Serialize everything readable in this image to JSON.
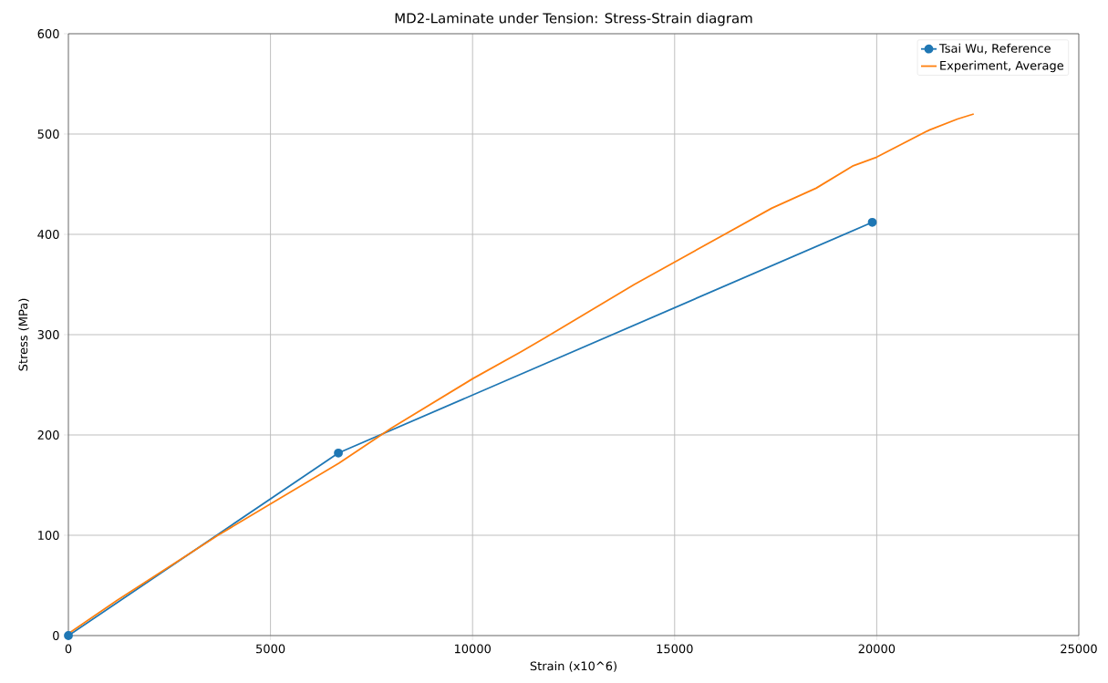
{
  "chart_data": {
    "type": "line",
    "title": "MD2-Laminate under Tension: Stress-Strain diagram",
    "xlabel": "Strain (x10^6)",
    "ylabel": "Stress (MPa)",
    "series": [
      {
        "name": "Tsai Wu, Reference",
        "color": "#1f77b4",
        "marker": "circle",
        "x": [
          0,
          6680,
          19890
        ],
        "values": [
          0,
          182,
          412
        ]
      },
      {
        "name": "Experiment, Average",
        "color": "#ff7f0e",
        "marker": "none",
        "x": [
          0,
          1200,
          3700,
          6700,
          8000,
          10000,
          11200,
          11800,
          14000,
          17400,
          18500,
          19400,
          20000,
          21300,
          22000,
          22400
        ],
        "values": [
          2,
          35,
          100,
          172,
          207,
          256,
          283,
          297,
          350,
          426,
          446,
          468,
          477,
          504,
          515,
          520
        ]
      }
    ],
    "xlim": [
      0,
      25000
    ],
    "ylim": [
      0,
      600
    ],
    "xticks": [
      0,
      5000,
      10000,
      15000,
      20000,
      25000
    ],
    "yticks": [
      0,
      100,
      200,
      300,
      400,
      500,
      600
    ],
    "grid": true,
    "legend": "top right"
  }
}
